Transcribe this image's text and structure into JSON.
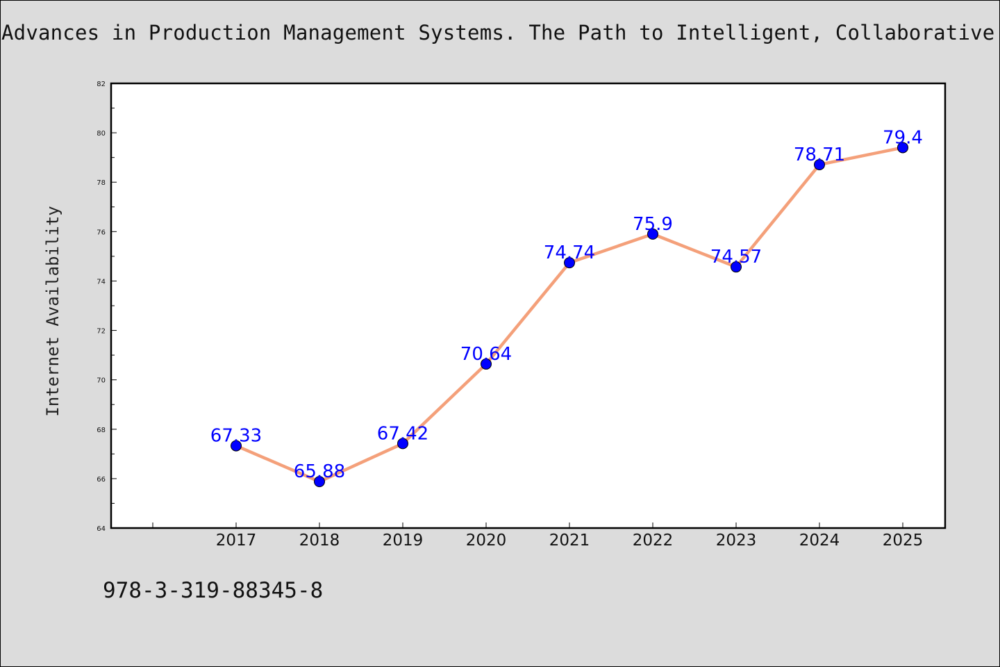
{
  "title": "Advances in Production Management Systems. The Path to Intelligent, Collaborative and Sustainable Manufacturing",
  "footer_text": "978-3-319-88345-8",
  "chart_data": {
    "type": "line",
    "title": "Advances in Production Management Systems. The Path to Intelligent, Collaborative and Sustainable Manufacturing",
    "xlabel": "",
    "ylabel": "Internet Availability",
    "x": [
      "2017",
      "2018",
      "2019",
      "2020",
      "2021",
      "2022",
      "2023",
      "2024",
      "2025"
    ],
    "series": [
      {
        "values": [
          67.33,
          65.88,
          67.42,
          70.64,
          74.74,
          75.9,
          74.57,
          78.71,
          79.4
        ],
        "data_labels": [
          "67.33",
          "65.88",
          "67.42",
          "70.64",
          "74.74",
          "75.9",
          "74.57",
          "78.71",
          "79.4"
        ],
        "line_color": "#f4a07a",
        "marker_color": "#0000ff"
      }
    ],
    "ylim": [
      64,
      82
    ],
    "yticks": [
      "64",
      "66",
      "68",
      "70",
      "72",
      "74",
      "76",
      "78",
      "80",
      "82"
    ],
    "grid": false,
    "legend": "none"
  }
}
